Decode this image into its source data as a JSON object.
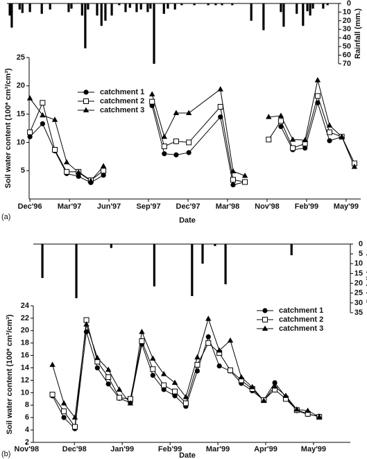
{
  "chart_data": [
    {
      "type": "line",
      "panel_label": "(a)",
      "x_label": "Date",
      "y_label": "Soil water content (100* cm³/cm³)",
      "y2_label": "Rainfall (mm.)",
      "xlim": [
        -0.02,
        8.37
      ],
      "xticks": [
        {
          "value": 0,
          "label": "Dec'96"
        },
        {
          "value": 1,
          "label": "Mar'97"
        },
        {
          "value": 2,
          "label": "Jun'97"
        },
        {
          "value": 3,
          "label": "Sep'97"
        },
        {
          "value": 4,
          "label": "Dec'97"
        },
        {
          "value": 5,
          "label": "Mar'98"
        },
        {
          "value": 6,
          "label": "Nov'98"
        },
        {
          "value": 7,
          "label": "Feb'99"
        },
        {
          "value": 8,
          "label": "May'99"
        }
      ],
      "ylim": [
        0,
        25
      ],
      "yticks": [
        5,
        10,
        15,
        20,
        25
      ],
      "y2lim": [
        0,
        70
      ],
      "y2ticks": [
        0,
        10,
        20,
        30,
        40,
        50,
        60,
        70
      ],
      "y2_inverted": true,
      "x": [
        0,
        0.32,
        0.63,
        0.93,
        1.23,
        1.54,
        1.86,
        null,
        3.09,
        3.4,
        3.7,
        4.02,
        4.82,
        5.14,
        5.44,
        null,
        6.04,
        6.35,
        6.65,
        6.96,
        7.28,
        7.58,
        7.89,
        8.21
      ],
      "series": [
        {
          "name": "catchment 1",
          "color": "#000000",
          "marker": "circle",
          "values": [
            11,
            13.3,
            8.5,
            4.5,
            4.0,
            2.9,
            4.2,
            null,
            16.5,
            8.0,
            7.8,
            8.2,
            14.5,
            2.5,
            3.0,
            null,
            null,
            12.8,
            8.7,
            9.0,
            17.0,
            10.3,
            11.0,
            6.3
          ]
        },
        {
          "name": "catchment 2",
          "color": "#000000",
          "marker": "square",
          "values": [
            11.8,
            17.0,
            8.7,
            4.8,
            4.8,
            3.3,
            5.0,
            null,
            17.2,
            9.3,
            10.2,
            10.0,
            16.3,
            3.4,
            3.0,
            null,
            10.5,
            13.8,
            9.0,
            9.8,
            18.2,
            11.8,
            11.0,
            6.3
          ]
        },
        {
          "name": "catchment 3",
          "color": "#000000",
          "marker": "triangle",
          "values": [
            17.8,
            14.8,
            14.0,
            6.5,
            4.7,
            3.2,
            5.8,
            null,
            18.5,
            11.0,
            15.2,
            15.2,
            19.4,
            4.9,
            4.1,
            null,
            14.5,
            14.7,
            10.5,
            10.4,
            21.0,
            13.0,
            11.0,
            5.7
          ]
        }
      ],
      "rainfall": {
        "axis": "y2",
        "color": "#000000",
        "x": [
          -0.51,
          -0.46,
          -0.26,
          -0.19,
          0,
          0.3,
          0.51,
          0.98,
          1.05,
          1.32,
          1.4,
          1.47,
          1.7,
          1.81,
          1.91,
          2.07,
          2.26,
          2.42,
          2.53,
          2.7,
          2.81,
          2.98,
          3.05,
          3.14,
          3.39,
          3.49,
          3.67,
          3.84,
          4.16,
          4.51,
          4.7,
          4.86,
          5.12,
          5.6,
          5.91,
          6.35,
          6.42,
          6.75,
          6.91,
          7.02,
          7.09,
          7.16,
          7.42,
          7.53
        ],
        "values": [
          14,
          28,
          7,
          11,
          10,
          12,
          7,
          10,
          6,
          14,
          52,
          7,
          14,
          26,
          20,
          14,
          2,
          10,
          5,
          10,
          7,
          10,
          6,
          70,
          12,
          6,
          7,
          2,
          2,
          2,
          2,
          2,
          2,
          20,
          31,
          10,
          27,
          12,
          26,
          9,
          14,
          6,
          6,
          2
        ]
      }
    },
    {
      "type": "line",
      "panel_label": "(b)",
      "x_label": "Date",
      "y_label": "Soil water content (100* cm³/cm³)",
      "y2_label": "Rainfall (mm.)",
      "xlim": [
        0.14,
        6.77
      ],
      "xticks": [
        {
          "value": 0,
          "label": "Nov'98"
        },
        {
          "value": 1,
          "label": "Dec'98"
        },
        {
          "value": 2,
          "label": "Jan'99"
        },
        {
          "value": 3,
          "label": "Feb'99"
        },
        {
          "value": 4,
          "label": "Mar'99"
        },
        {
          "value": 5,
          "label": "Apr'99"
        },
        {
          "value": 6,
          "label": "May'99"
        }
      ],
      "ylim": [
        2,
        24
      ],
      "yticks": [
        2,
        4,
        6,
        8,
        10,
        12,
        14,
        16,
        18,
        20,
        22,
        24
      ],
      "y2lim": [
        0,
        35
      ],
      "y2ticks": [
        0,
        5,
        10,
        15,
        20,
        25,
        30,
        35
      ],
      "y2_inverted": true,
      "x": [
        0.54,
        0.78,
        1.01,
        1.25,
        1.48,
        1.71,
        1.94,
        2.17,
        2.41,
        2.64,
        2.87,
        3.1,
        3.33,
        3.57,
        3.8,
        4.03,
        4.26,
        4.49,
        4.72,
        4.96,
        5.19,
        5.42,
        5.65,
        5.88,
        6.12
      ],
      "series": [
        {
          "name": "catchment 1",
          "color": "#000000",
          "marker": "circle",
          "values": [
            9.5,
            6.0,
            4.2,
            19.8,
            14.0,
            11.4,
            9.1,
            8.4,
            17.8,
            12.8,
            10.5,
            9.5,
            7.8,
            13.5,
            19.0,
            14.3,
            13.5,
            11.5,
            10.3,
            8.8,
            11.6,
            9.3,
            7.1,
            6.5,
            6.2
          ]
        },
        {
          "name": "catchment 2",
          "color": "#000000",
          "marker": "square",
          "values": [
            9.7,
            7.0,
            4.5,
            21.7,
            15.0,
            12.5,
            9.2,
            9.0,
            18.3,
            13.8,
            11.2,
            10.2,
            8.3,
            14.5,
            18.0,
            16.4,
            13.6,
            12.0,
            10.6,
            8.8,
            10.5,
            9.0,
            7.2,
            6.6,
            6.1
          ]
        },
        {
          "name": "catchment 3",
          "color": "#000000",
          "marker": "triangle",
          "values": [
            14.5,
            8.3,
            6.0,
            21.0,
            15.6,
            13.7,
            10.5,
            8.3,
            19.8,
            15.5,
            13.0,
            11.6,
            9.3,
            15.7,
            21.9,
            16.8,
            18.4,
            12.5,
            10.9,
            8.7,
            11.0,
            9.5,
            7.3,
            7.1,
            6.1
          ]
        }
      ],
      "rainfall": {
        "axis": "y2",
        "color": "#000000",
        "x": [
          0.33,
          1.04,
          1.77,
          2.67,
          3.46,
          3.68,
          3.94,
          4.16,
          5.54
        ],
        "values": [
          17.3,
          27.6,
          2,
          21.6,
          26.5,
          10,
          1,
          20.5,
          5.7
        ]
      }
    }
  ]
}
